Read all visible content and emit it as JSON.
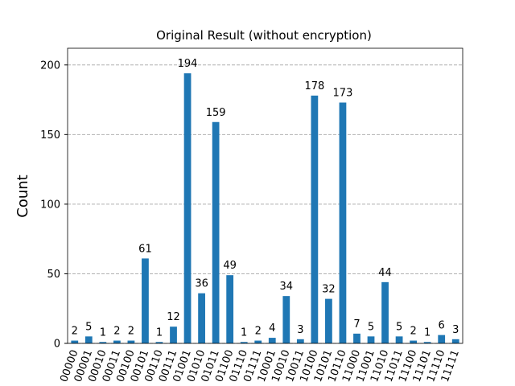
{
  "chart_data": {
    "type": "bar",
    "title": "Original Result (without encryption)",
    "ylabel": "Count",
    "categories": [
      "00000",
      "00001",
      "00010",
      "00011",
      "00100",
      "00101",
      "00110",
      "00111",
      "01001",
      "01010",
      "01011",
      "01100",
      "01110",
      "01111",
      "10001",
      "10010",
      "10011",
      "10100",
      "10101",
      "10110",
      "11000",
      "11001",
      "11010",
      "11011",
      "11100",
      "11101",
      "11110",
      "11111"
    ],
    "values": [
      2,
      5,
      1,
      2,
      2,
      61,
      1,
      12,
      194,
      36,
      159,
      49,
      1,
      2,
      4,
      34,
      3,
      178,
      32,
      173,
      7,
      5,
      44,
      5,
      2,
      1,
      6,
      3
    ],
    "color": "#1f77b4",
    "ylim": [
      0,
      212
    ],
    "yticks": [
      0,
      50,
      100,
      150,
      200
    ],
    "grid": true
  }
}
